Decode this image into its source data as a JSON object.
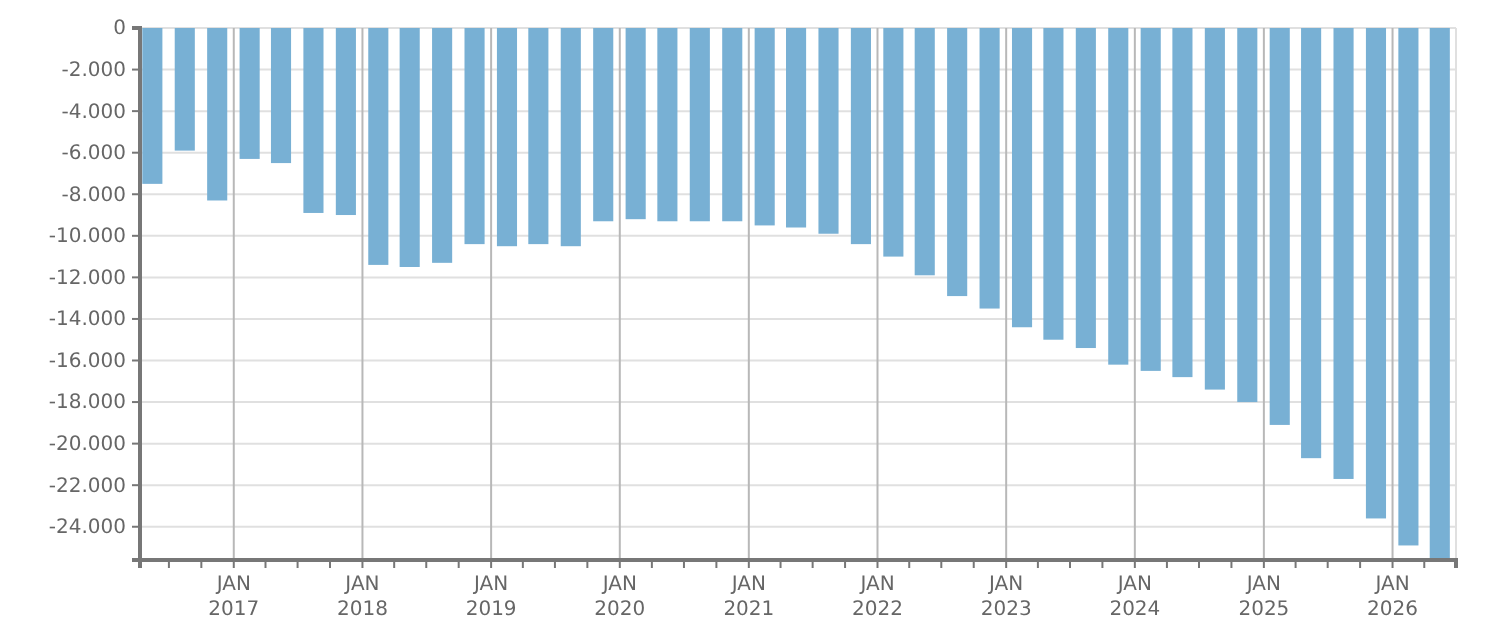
{
  "chart_data": {
    "type": "bar",
    "color": "#78b0d4",
    "grid": true,
    "x": [
      "2016-05-15",
      "2016-08-15",
      "2016-11-15",
      "2017-02-15",
      "2017-05-15",
      "2017-08-15",
      "2017-11-15",
      "2018-02-15",
      "2018-05-15",
      "2018-08-15",
      "2018-11-15",
      "2019-02-15",
      "2019-05-15",
      "2019-08-15",
      "2019-11-15",
      "2020-02-15",
      "2020-05-15",
      "2020-08-15",
      "2020-11-15",
      "2021-02-15",
      "2021-05-15",
      "2021-08-15",
      "2021-11-15",
      "2022-02-15",
      "2022-05-15",
      "2022-08-15",
      "2022-11-15",
      "2023-02-15",
      "2023-05-15",
      "2023-08-15",
      "2023-11-15",
      "2024-02-15",
      "2024-05-15",
      "2024-08-15",
      "2024-11-15",
      "2025-02-15",
      "2025-05-15",
      "2025-08-15",
      "2025-11-15",
      "2026-02-15",
      "2026-05-15"
    ],
    "values": [
      -7500,
      -5900,
      -8300,
      -6300,
      -6500,
      -8900,
      -9000,
      -11400,
      -11500,
      -11300,
      -10400,
      -10500,
      -10400,
      -10500,
      -9300,
      -9200,
      -9300,
      -9300,
      -9300,
      -9500,
      -9600,
      -9900,
      -10400,
      -11000,
      -11900,
      -12900,
      -13500,
      -14400,
      -15000,
      -15400,
      -16200,
      -16500,
      -16800,
      -17400,
      -18000,
      -19100,
      -20700,
      -21700,
      -23600,
      -24900,
      -25600
    ],
    "xlim": [
      "2016-04-10",
      "2026-06-30"
    ],
    "xticks": [
      {
        "value": "2016-07-01",
        "label": null
      },
      {
        "value": "2016-10-01",
        "label": null
      },
      {
        "value": "2017-01-01",
        "label": "JAN 2017"
      },
      {
        "value": "2017-04-01",
        "label": null
      },
      {
        "value": "2017-07-01",
        "label": null
      },
      {
        "value": "2017-10-01",
        "label": null
      },
      {
        "value": "2018-01-01",
        "label": "JAN 2018"
      },
      {
        "value": "2018-04-01",
        "label": null
      },
      {
        "value": "2018-07-01",
        "label": null
      },
      {
        "value": "2018-10-01",
        "label": null
      },
      {
        "value": "2019-01-01",
        "label": "JAN 2019"
      },
      {
        "value": "2019-04-01",
        "label": null
      },
      {
        "value": "2019-07-01",
        "label": null
      },
      {
        "value": "2019-10-01",
        "label": null
      },
      {
        "value": "2020-01-01",
        "label": "JAN 2020"
      },
      {
        "value": "2020-04-01",
        "label": null
      },
      {
        "value": "2020-07-01",
        "label": null
      },
      {
        "value": "2020-10-01",
        "label": null
      },
      {
        "value": "2021-01-01",
        "label": "JAN 2021"
      },
      {
        "value": "2021-04-01",
        "label": null
      },
      {
        "value": "2021-07-01",
        "label": null
      },
      {
        "value": "2021-10-01",
        "label": null
      },
      {
        "value": "2022-01-01",
        "label": "JAN 2022"
      },
      {
        "value": "2022-04-01",
        "label": null
      },
      {
        "value": "2022-07-01",
        "label": null
      },
      {
        "value": "2022-10-01",
        "label": null
      },
      {
        "value": "2023-01-01",
        "label": "JAN 2023"
      },
      {
        "value": "2023-04-01",
        "label": null
      },
      {
        "value": "2023-07-01",
        "label": null
      },
      {
        "value": "2023-10-01",
        "label": null
      },
      {
        "value": "2024-01-01",
        "label": "JAN 2024"
      },
      {
        "value": "2024-04-01",
        "label": null
      },
      {
        "value": "2024-07-01",
        "label": null
      },
      {
        "value": "2024-10-01",
        "label": null
      },
      {
        "value": "2025-01-01",
        "label": "JAN 2025"
      },
      {
        "value": "2025-04-01",
        "label": null
      },
      {
        "value": "2025-07-01",
        "label": null
      },
      {
        "value": "2025-10-01",
        "label": null
      },
      {
        "value": "2026-01-01",
        "label": "JAN 2026"
      },
      {
        "value": "2026-04-01",
        "label": null
      }
    ],
    "ylim": [
      -25600,
      0
    ],
    "yticks": [
      0,
      {
        "value": -2000,
        "label": "-2.000"
      },
      {
        "value": -4000,
        "label": "-4.000"
      },
      {
        "value": -6000,
        "label": "-6.000"
      },
      {
        "value": -8000,
        "label": "-8.000"
      },
      {
        "value": -10000,
        "label": "-10.000"
      },
      {
        "value": -12000,
        "label": "-12.000"
      },
      {
        "value": -14000,
        "label": "-14.000"
      },
      {
        "value": -16000,
        "label": "-16.000"
      },
      {
        "value": -18000,
        "label": "-18.000"
      },
      {
        "value": -20000,
        "label": "-20.000"
      },
      {
        "value": -22000,
        "label": "-22.000"
      },
      {
        "value": -24000,
        "label": "-24.000"
      }
    ]
  }
}
